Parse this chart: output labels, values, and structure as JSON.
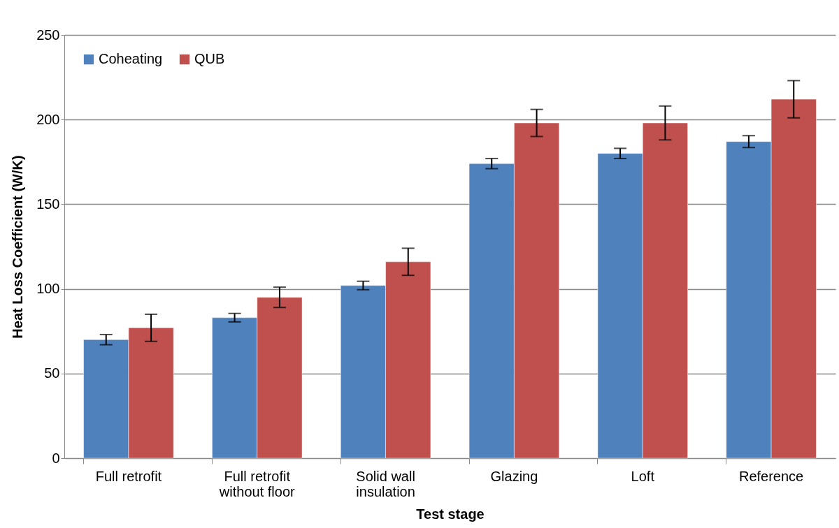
{
  "chart_data": {
    "type": "bar",
    "xlabel": "Test stage",
    "ylabel": "Heat Loss Coefficient (W/K)",
    "categories": [
      "Full retrofit",
      "Full retrofit without floor",
      "Solid wall insulation",
      "Glazing",
      "Loft",
      "Reference"
    ],
    "series": [
      {
        "name": "Coheating",
        "color": "#4f81bd",
        "values": [
          70,
          83,
          102,
          174,
          180,
          187
        ],
        "errors": [
          3,
          2.5,
          2.5,
          3,
          3,
          3.5
        ]
      },
      {
        "name": "QUB",
        "color": "#c0504d",
        "values": [
          77,
          95,
          116,
          198,
          198,
          212
        ],
        "errors": [
          8,
          6,
          8,
          8,
          10,
          11
        ]
      }
    ],
    "ylim": [
      0,
      250
    ],
    "yticks": [
      0,
      50,
      100,
      150,
      200,
      250
    ],
    "grid": "y",
    "legend": "top left"
  }
}
